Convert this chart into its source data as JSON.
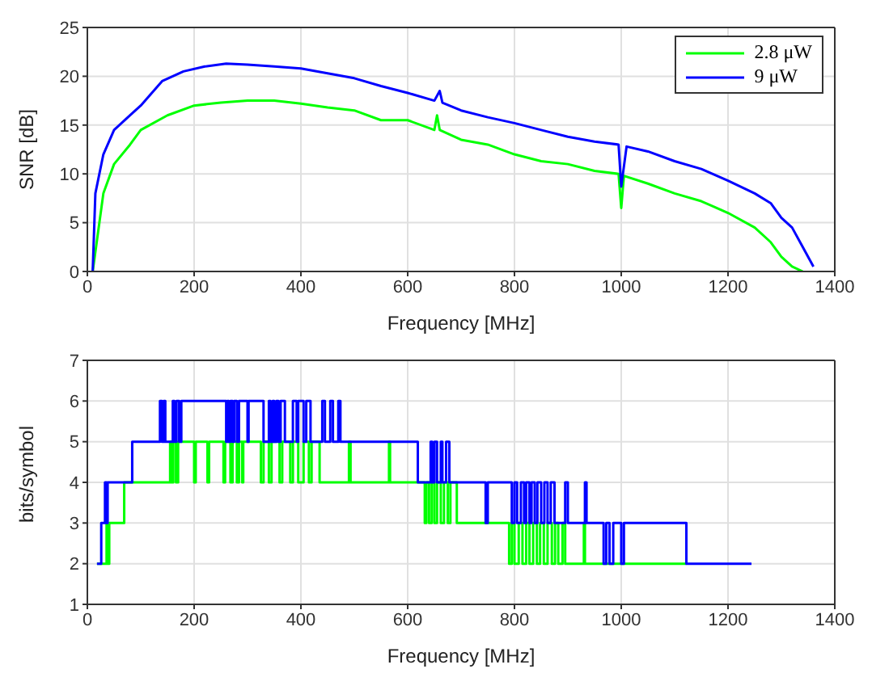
{
  "chart_data": [
    {
      "type": "line",
      "xlabel": "Frequency [MHz]",
      "ylabel": "SNR [dB]",
      "xlim": [
        0,
        1400
      ],
      "xticks": [
        0,
        200,
        400,
        600,
        800,
        1000,
        1200,
        1400
      ],
      "ylim": [
        0,
        25
      ],
      "yticks": [
        0,
        5,
        10,
        15,
        20,
        25
      ],
      "grid": true,
      "legend": "top right",
      "marker": "none",
      "line_style": "solid",
      "series": [
        {
          "name": "2.8 μW",
          "color": "#00ff00",
          "x": [
            10,
            20,
            30,
            50,
            80,
            100,
            150,
            200,
            250,
            300,
            350,
            400,
            450,
            500,
            550,
            600,
            650,
            655,
            660,
            700,
            750,
            800,
            850,
            900,
            950,
            995,
            1000,
            1005,
            1050,
            1100,
            1150,
            1200,
            1250,
            1280,
            1300,
            1320,
            1340
          ],
          "values": [
            0,
            4,
            8,
            11,
            13,
            14.5,
            16,
            17,
            17.3,
            17.5,
            17.5,
            17.2,
            16.8,
            16.5,
            15.5,
            15.5,
            14.5,
            16,
            14.5,
            13.5,
            13,
            12,
            11.3,
            11,
            10.3,
            10,
            6.5,
            9.8,
            9,
            8,
            7.2,
            6,
            4.5,
            3,
            1.5,
            0.5,
            0
          ]
        },
        {
          "name": "9 μW",
          "color": "#0000ff",
          "x": [
            10,
            15,
            30,
            50,
            80,
            100,
            140,
            180,
            220,
            260,
            300,
            350,
            400,
            450,
            500,
            550,
            600,
            650,
            660,
            665,
            700,
            750,
            800,
            850,
            900,
            950,
            995,
            1000,
            1010,
            1050,
            1100,
            1150,
            1200,
            1250,
            1280,
            1300,
            1320,
            1340,
            1360
          ],
          "values": [
            0,
            8,
            12,
            14.5,
            16,
            17,
            19.5,
            20.5,
            21,
            21.3,
            21.2,
            21,
            20.8,
            20.3,
            19.8,
            19,
            18.3,
            17.5,
            18.5,
            17.3,
            16.5,
            15.8,
            15.2,
            14.5,
            13.8,
            13.3,
            13,
            8.7,
            12.8,
            12.3,
            11.3,
            10.5,
            9.3,
            8,
            7,
            5.5,
            4.5,
            2.5,
            0.5
          ]
        }
      ]
    },
    {
      "type": "step",
      "xlabel": "Frequency [MHz]",
      "ylabel": "bits/symbol",
      "xlim": [
        0,
        1400
      ],
      "xticks": [
        0,
        200,
        400,
        600,
        800,
        1000,
        1200,
        1400
      ],
      "ylim": [
        1,
        7
      ],
      "yticks": [
        1,
        2,
        3,
        4,
        5,
        6,
        7
      ],
      "grid": true,
      "legend": false,
      "marker": "none",
      "line_style": "solid",
      "series": [
        {
          "color": "#00ff00",
          "x": [
            18,
            36,
            38,
            41,
            69,
            155,
            158,
            161,
            166,
            170,
            200,
            203,
            225,
            228,
            255,
            258,
            268,
            272,
            280,
            284,
            290,
            292,
            325,
            330,
            340,
            345,
            360,
            365,
            380,
            385,
            395,
            405,
            415,
            420,
            435,
            440,
            490,
            493,
            565,
            567,
            632,
            635,
            640,
            645,
            650,
            655,
            662,
            668,
            675,
            680,
            692,
            790,
            795,
            800,
            808,
            815,
            822,
            828,
            835,
            842,
            848,
            855,
            862,
            870,
            876,
            882,
            890,
            895,
            930,
            932,
            1122
          ],
          "values": [
            2,
            3,
            2,
            3,
            4,
            5,
            4,
            5,
            4,
            5,
            4,
            5,
            4,
            5,
            4,
            5,
            4,
            5,
            4,
            5,
            4,
            5,
            4,
            5,
            4,
            5,
            4,
            5,
            4,
            5,
            4,
            5,
            4,
            5,
            4,
            4,
            5,
            4,
            5,
            4,
            3,
            4,
            3,
            4,
            3,
            4,
            3,
            4,
            3,
            4,
            3,
            2,
            3,
            2,
            3,
            2,
            3,
            2,
            3,
            2,
            3,
            2,
            3,
            2,
            3,
            2,
            3,
            2,
            3,
            2,
            2
          ]
        },
        {
          "color": "#0000ff",
          "x": [
            18,
            26,
            33,
            36,
            38,
            84,
            136,
            140,
            143,
            146,
            160,
            163,
            167,
            172,
            176,
            260,
            262,
            265,
            268,
            272,
            275,
            280,
            284,
            300,
            302,
            330,
            340,
            343,
            347,
            350,
            354,
            358,
            362,
            370,
            385,
            392,
            395,
            405,
            410,
            418,
            440,
            445,
            455,
            460,
            470,
            474,
            619,
            643,
            646,
            650,
            655,
            662,
            665,
            672,
            678,
            746,
            750,
            795,
            800,
            805,
            812,
            818,
            822,
            828,
            832,
            838,
            843,
            850,
            856,
            862,
            868,
            875,
            895,
            900,
            932,
            935,
            967,
            972,
            978,
            985,
            1000,
            1005,
            1122,
            1244
          ],
          "values": [
            2,
            3,
            4,
            3,
            4,
            5,
            6,
            5,
            6,
            5,
            6,
            5,
            6,
            5,
            6,
            5,
            6,
            5,
            6,
            5,
            6,
            5,
            6,
            5,
            6,
            5,
            6,
            5,
            6,
            5,
            6,
            5,
            6,
            5,
            6,
            5,
            6,
            5,
            6,
            5,
            6,
            5,
            6,
            5,
            6,
            5,
            4,
            5,
            4,
            5,
            4,
            5,
            4,
            5,
            4,
            3,
            4,
            3,
            4,
            3,
            4,
            3,
            4,
            3,
            4,
            3,
            4,
            3,
            4,
            3,
            4,
            3,
            4,
            3,
            4,
            3,
            2,
            3,
            2,
            3,
            2,
            3,
            2,
            2
          ]
        }
      ]
    }
  ]
}
